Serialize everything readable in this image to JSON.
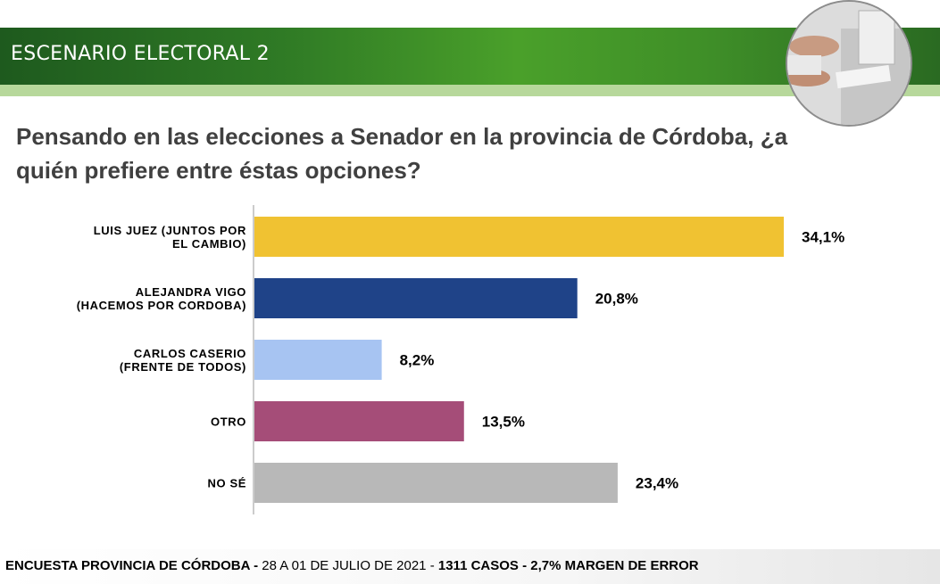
{
  "header": {
    "title": "ESCENARIO ELECTORAL 2"
  },
  "question": "Pensando en las elecciones a Senador en la provincia de Córdoba, ¿a quién prefiere entre éstas opciones?",
  "footer": {
    "part1": "ENCUESTA PROVINCIA DE CÓRDOBA",
    "sep1": " - ",
    "part2": "28 A 01 DE JULIO DE 2021",
    "sep2": " - ",
    "part3": "1311 CASOS - 2,7% MARGEN DE ERROR"
  },
  "chart_data": {
    "type": "bar",
    "orientation": "horizontal",
    "categories": [
      [
        "LUIS JUEZ (JUNTOS POR",
        "EL CAMBIO)"
      ],
      [
        "ALEJANDRA VIGO",
        "(HACEMOS POR CORDOBA)"
      ],
      [
        "CARLOS CASERIO",
        "(FRENTE DE TODOS)"
      ],
      [
        "OTRO"
      ],
      [
        "NO SÉ"
      ]
    ],
    "values": [
      34.1,
      20.8,
      8.2,
      13.5,
      23.4
    ],
    "value_labels": [
      "34,1%",
      "20,8%",
      "8,2%",
      "13,5%",
      "23,4%"
    ],
    "colors": [
      "#f0c232",
      "#1f4388",
      "#a7c4f2",
      "#a54d78",
      "#b8b8b8"
    ],
    "xlim": [
      0,
      34.1
    ],
    "grid": false,
    "legend": "none"
  }
}
